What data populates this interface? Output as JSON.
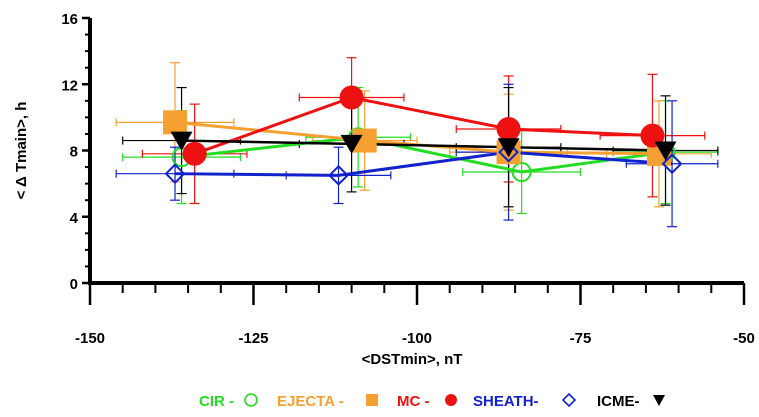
{
  "chart_data": {
    "type": "scatter",
    "xlabel": "<DSTmin>, nT",
    "ylabel": "< Δ Tmain>, h",
    "xlim": [
      -150,
      -50
    ],
    "ylim": [
      0,
      16
    ],
    "x_ticks": [
      -150,
      -125,
      -100,
      -75,
      -50
    ],
    "y_ticks": [
      0,
      4,
      8,
      12,
      16
    ],
    "grid": false,
    "legend_position": "bottom",
    "series": [
      {
        "name": "CIR",
        "color": "#22dd22",
        "marker": "circle-open",
        "x": [
          -136,
          -109,
          -84,
          -62
        ],
        "y": [
          7.6,
          8.8,
          6.7,
          7.9
        ],
        "xerr": [
          9,
          8,
          9,
          8
        ],
        "yerr": [
          2.8,
          3.0,
          2.5,
          3.1
        ]
      },
      {
        "name": "EJECTA",
        "color": "#f5a030",
        "marker": "square-filled",
        "x": [
          -137,
          -108,
          -86,
          -63
        ],
        "y": [
          9.7,
          8.6,
          7.9,
          7.8
        ],
        "xerr": [
          9,
          8,
          9,
          8
        ],
        "yerr": [
          3.6,
          3.0,
          3.5,
          3.2
        ]
      },
      {
        "name": "MC",
        "color": "#ee1111",
        "marker": "circle-filled",
        "x": [
          -134,
          -110,
          -86,
          -64
        ],
        "y": [
          7.8,
          11.2,
          9.3,
          8.9
        ],
        "xerr": [
          8,
          8,
          8,
          8
        ],
        "yerr": [
          3.0,
          2.4,
          3.2,
          3.7
        ]
      },
      {
        "name": "SHEATH",
        "color": "#1122cc",
        "marker": "diamond-open",
        "x": [
          -137,
          -112,
          -86,
          -61
        ],
        "y": [
          6.6,
          6.5,
          7.9,
          7.2
        ],
        "xerr": [
          9,
          8,
          8,
          7
        ],
        "yerr": [
          1.6,
          1.7,
          4.1,
          3.8
        ]
      },
      {
        "name": "ICME",
        "color": "#000000",
        "marker": "triangle-down-filled",
        "x": [
          -136,
          -110,
          -86,
          -62
        ],
        "y": [
          8.6,
          8.4,
          8.2,
          8.0
        ],
        "xerr": [
          9,
          8,
          8,
          8
        ],
        "yerr": [
          3.2,
          2.9,
          3.6,
          3.3
        ]
      }
    ]
  },
  "legend": [
    {
      "label": "CIR -",
      "color": "#22dd22",
      "marker": "circle-open"
    },
    {
      "label": "EJECTA -",
      "color": "#f5a030",
      "marker": "square-filled"
    },
    {
      "label": "MC -",
      "color": "#ee1111",
      "marker": "circle-filled"
    },
    {
      "label": "SHEATH-",
      "color": "#1122cc",
      "marker": "diamond-open"
    },
    {
      "label": "ICME-",
      "color": "#000000",
      "marker": "triangle-down-filled"
    }
  ]
}
